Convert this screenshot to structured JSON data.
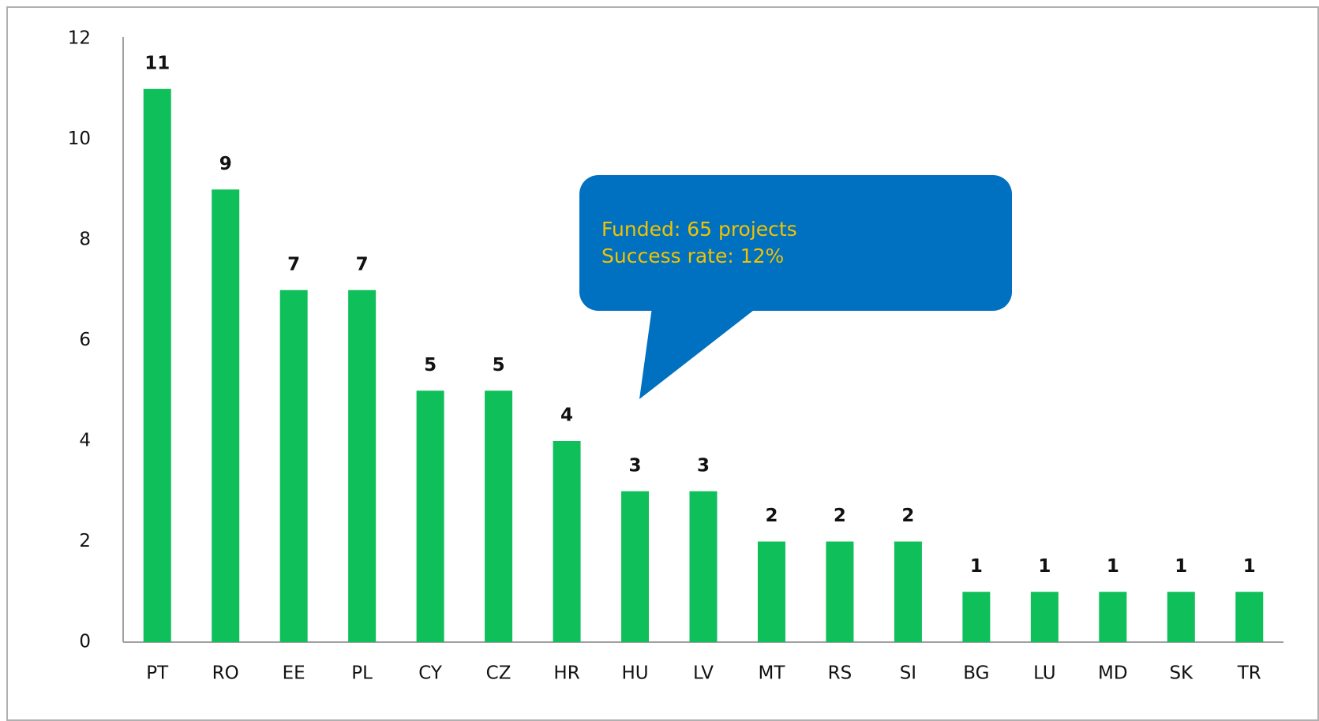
{
  "chart_data": {
    "type": "bar",
    "categories": [
      "PT",
      "RO",
      "EE",
      "PL",
      "CY",
      "CZ",
      "HR",
      "HU",
      "LV",
      "MT",
      "RS",
      "SI",
      "BG",
      "LU",
      "MD",
      "SK",
      "TR"
    ],
    "values": [
      11,
      9,
      7,
      7,
      5,
      5,
      4,
      3,
      3,
      2,
      2,
      2,
      1,
      1,
      1,
      1,
      1
    ],
    "color": "#0fbf5a",
    "ylim": [
      0,
      12
    ],
    "yticks": [
      0,
      2,
      4,
      6,
      8,
      10,
      12
    ],
    "annotation": [
      "Funded: 65 projects",
      "Success rate: 12%"
    ],
    "annotation_color": "#0070c0"
  }
}
